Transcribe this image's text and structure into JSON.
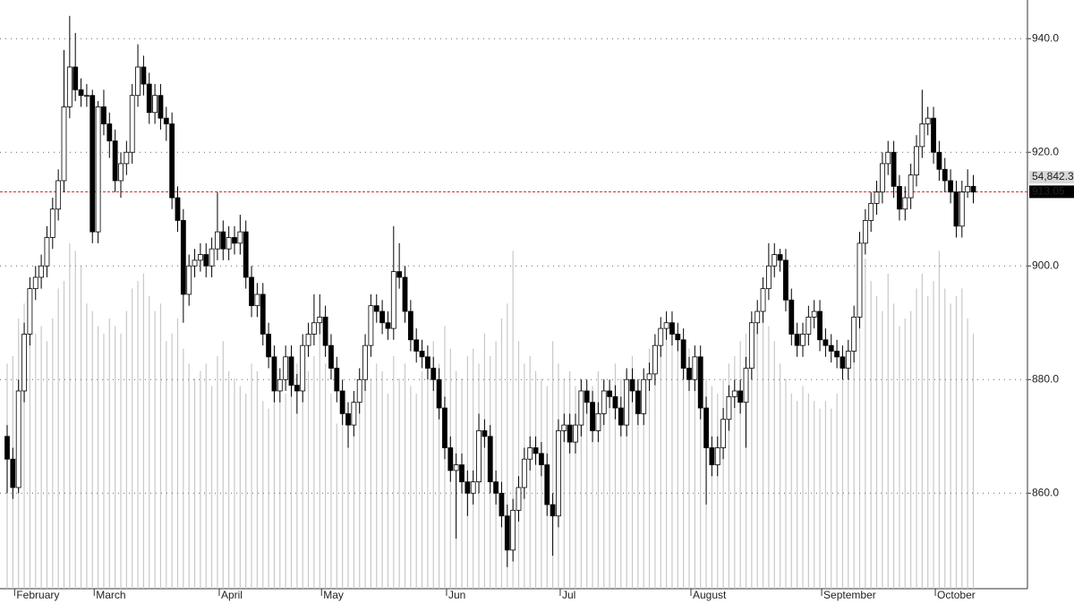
{
  "chart_data": {
    "type": "candlestick",
    "categories": [
      null,
      "February",
      null,
      null,
      null,
      null,
      null,
      null,
      null,
      null,
      null,
      null,
      null,
      null,
      null,
      "March",
      null,
      null,
      null,
      null,
      null,
      null,
      null,
      null,
      null,
      null,
      null,
      null,
      null,
      null,
      null,
      null,
      null,
      null,
      null,
      null,
      null,
      "April",
      null,
      null,
      null,
      null,
      null,
      null,
      null,
      null,
      null,
      null,
      null,
      null,
      null,
      null,
      null,
      null,
      null,
      "May",
      null,
      null,
      null,
      null,
      null,
      null,
      null,
      null,
      null,
      null,
      null,
      null,
      null,
      null,
      null,
      null,
      null,
      null,
      null,
      null,
      null,
      "Jun",
      null,
      null,
      null,
      null,
      null,
      null,
      null,
      null,
      null,
      null,
      null,
      null,
      null,
      null,
      null,
      null,
      null,
      null,
      null,
      "Jul",
      null,
      null,
      null,
      null,
      null,
      null,
      null,
      null,
      null,
      null,
      null,
      null,
      null,
      null,
      null,
      null,
      null,
      null,
      null,
      null,
      null,
      null,
      "August",
      null,
      null,
      null,
      null,
      null,
      null,
      null,
      null,
      null,
      null,
      null,
      null,
      null,
      null,
      null,
      null,
      null,
      null,
      null,
      null,
      null,
      null,
      "September",
      null,
      null,
      null,
      null,
      null,
      null,
      null,
      null,
      null,
      null,
      null,
      null,
      null,
      null,
      null,
      null,
      null,
      null,
      null,
      "October",
      null,
      null,
      null,
      null,
      null,
      null,
      null
    ],
    "open": [
      870,
      866,
      861,
      878,
      888,
      896,
      898,
      900,
      905,
      910,
      915,
      928,
      935,
      931,
      930,
      930,
      906,
      928,
      925,
      922,
      915,
      918,
      920,
      930,
      935,
      932,
      927,
      930,
      926,
      925,
      912,
      908,
      895,
      900,
      901,
      902,
      900,
      903,
      906,
      903,
      905,
      904,
      906,
      898,
      893,
      895,
      888,
      884,
      878,
      880,
      884,
      879,
      878,
      886,
      888,
      890,
      891,
      886,
      882,
      878,
      874,
      872,
      876,
      880,
      886,
      893,
      892,
      890,
      889,
      899,
      898,
      892,
      887,
      885,
      884,
      882,
      880,
      875,
      868,
      864,
      865,
      862,
      860,
      862,
      871,
      870,
      862,
      860,
      856,
      850,
      857,
      861,
      866,
      868,
      867,
      865,
      858,
      856,
      871,
      872,
      869,
      872,
      878,
      876,
      871,
      874,
      878,
      877,
      875,
      872,
      880,
      878,
      874,
      880,
      881,
      886,
      889,
      890,
      888,
      887,
      882,
      880,
      884,
      875,
      868,
      865,
      868,
      873,
      877,
      878,
      876,
      882,
      890,
      892,
      896,
      900,
      902,
      901,
      894,
      888,
      886,
      888,
      891,
      892,
      887,
      886,
      885,
      884,
      882,
      885,
      891,
      904,
      908,
      911,
      913,
      918,
      920,
      914,
      910,
      912,
      916,
      921,
      925,
      926,
      920,
      917,
      915,
      913,
      907,
      913,
      914
    ],
    "high": [
      872,
      868,
      880,
      890,
      898,
      900,
      902,
      907,
      912,
      917,
      938,
      944,
      941,
      933,
      932,
      931,
      929,
      931,
      927,
      924,
      920,
      922,
      932,
      939,
      937,
      934,
      932,
      932,
      928,
      927,
      914,
      910,
      902,
      903,
      904,
      904,
      905,
      913,
      908,
      907,
      907,
      909,
      908,
      900,
      897,
      897,
      890,
      886,
      882,
      886,
      886,
      881,
      888,
      890,
      895,
      895,
      893,
      888,
      884,
      880,
      876,
      878,
      882,
      888,
      895,
      895,
      894,
      892,
      907,
      904,
      900,
      894,
      889,
      887,
      886,
      884,
      882,
      877,
      870,
      867,
      867,
      864,
      864,
      874,
      873,
      872,
      864,
      862,
      858,
      859,
      863,
      868,
      870,
      870,
      869,
      867,
      860,
      873,
      874,
      874,
      874,
      880,
      880,
      878,
      876,
      880,
      880,
      879,
      877,
      882,
      882,
      880,
      882,
      883,
      888,
      891,
      892,
      892,
      890,
      889,
      884,
      886,
      886,
      877,
      870,
      870,
      875,
      879,
      880,
      880,
      884,
      892,
      894,
      898,
      904,
      904,
      903,
      903,
      896,
      890,
      890,
      893,
      894,
      894,
      889,
      888,
      887,
      886,
      887,
      893,
      906,
      910,
      913,
      915,
      920,
      922,
      922,
      916,
      914,
      918,
      923,
      931,
      928,
      928,
      922,
      919,
      917,
      915,
      915,
      917,
      916
    ],
    "low": [
      860,
      859,
      860,
      876,
      886,
      894,
      896,
      898,
      903,
      908,
      913,
      926,
      929,
      928,
      928,
      904,
      904,
      923,
      919,
      913,
      912,
      916,
      918,
      928,
      930,
      925,
      925,
      924,
      922,
      910,
      906,
      890,
      893,
      898,
      899,
      898,
      898,
      901,
      901,
      901,
      902,
      902,
      896,
      891,
      891,
      886,
      882,
      876,
      876,
      878,
      877,
      874,
      876,
      884,
      886,
      888,
      884,
      880,
      876,
      872,
      868,
      870,
      874,
      878,
      884,
      890,
      888,
      887,
      887,
      896,
      890,
      885,
      883,
      882,
      880,
      878,
      873,
      866,
      862,
      852,
      860,
      856,
      858,
      860,
      868,
      860,
      858,
      854,
      847,
      848,
      855,
      859,
      864,
      865,
      863,
      856,
      849,
      854,
      869,
      867,
      867,
      870,
      874,
      869,
      869,
      872,
      875,
      873,
      870,
      870,
      876,
      872,
      872,
      878,
      879,
      884,
      887,
      886,
      885,
      880,
      878,
      878,
      873,
      858,
      863,
      863,
      866,
      871,
      875,
      874,
      868,
      880,
      888,
      890,
      894,
      898,
      899,
      892,
      886,
      884,
      884,
      886,
      889,
      885,
      884,
      883,
      882,
      880,
      880,
      883,
      889,
      902,
      906,
      909,
      911,
      916,
      912,
      908,
      908,
      910,
      914,
      919,
      923,
      918,
      915,
      913,
      911,
      905,
      905,
      912,
      911
    ],
    "close": [
      866,
      861,
      878,
      888,
      896,
      898,
      900,
      905,
      910,
      915,
      928,
      935,
      931,
      930,
      930,
      906,
      928,
      925,
      922,
      915,
      918,
      920,
      930,
      935,
      932,
      927,
      930,
      926,
      925,
      912,
      908,
      895,
      900,
      901,
      902,
      900,
      903,
      906,
      903,
      905,
      904,
      906,
      898,
      893,
      895,
      888,
      884,
      878,
      880,
      884,
      879,
      878,
      886,
      888,
      890,
      891,
      886,
      882,
      878,
      874,
      872,
      876,
      880,
      886,
      893,
      892,
      890,
      889,
      899,
      898,
      892,
      887,
      885,
      884,
      882,
      880,
      875,
      868,
      864,
      865,
      862,
      860,
      862,
      871,
      870,
      862,
      860,
      856,
      850,
      857,
      861,
      866,
      868,
      867,
      865,
      858,
      856,
      871,
      872,
      869,
      872,
      878,
      876,
      871,
      874,
      878,
      877,
      875,
      872,
      880,
      878,
      874,
      880,
      881,
      886,
      889,
      890,
      888,
      887,
      882,
      880,
      884,
      875,
      868,
      865,
      868,
      873,
      877,
      878,
      876,
      882,
      890,
      892,
      896,
      900,
      902,
      901,
      894,
      888,
      886,
      888,
      891,
      892,
      887,
      886,
      885,
      884,
      882,
      885,
      891,
      904,
      908,
      911,
      913,
      918,
      920,
      914,
      910,
      912,
      916,
      921,
      925,
      926,
      920,
      917,
      915,
      913,
      907,
      913,
      914,
      913
    ],
    "volume": [
      30000,
      31000,
      36000,
      38000,
      33000,
      34000,
      35000,
      33000,
      36000,
      40000,
      41000,
      46000,
      45000,
      43000,
      38000,
      37000,
      35000,
      34000,
      36000,
      35000,
      34000,
      37000,
      40000,
      41000,
      42000,
      39000,
      37000,
      38000,
      33000,
      34000,
      36000,
      32000,
      30000,
      28000,
      29000,
      30000,
      27000,
      31000,
      33000,
      29000,
      28000,
      27000,
      26000,
      30000,
      29000,
      25000,
      24000,
      27000,
      25000,
      26000,
      28000,
      30000,
      27000,
      29000,
      31000,
      34000,
      30000,
      26000,
      22000,
      24000,
      23000,
      25000,
      26000,
      27000,
      28000,
      30000,
      29000,
      26000,
      31000,
      28000,
      30000,
      27000,
      26000,
      29000,
      31000,
      33000,
      30000,
      35000,
      32000,
      29000,
      28000,
      31000,
      32000,
      30000,
      34000,
      31000,
      33000,
      36000,
      38000,
      45000,
      33000,
      30000,
      31000,
      29000,
      28000,
      27000,
      33000,
      30000,
      28000,
      29000,
      27000,
      28000,
      26000,
      27000,
      29000,
      28000,
      27000,
      30000,
      28000,
      29000,
      31000,
      28000,
      29000,
      32000,
      33000,
      34000,
      35000,
      36000,
      33000,
      31000,
      32000,
      30000,
      29000,
      28000,
      27000,
      26000,
      28000,
      30000,
      31000,
      33000,
      34000,
      36000,
      37000,
      38000,
      35000,
      33000,
      30000,
      28000,
      26000,
      25000,
      27000,
      26000,
      25000,
      24000,
      25000,
      24000,
      26000,
      28000,
      32000,
      36000,
      40000,
      44000,
      41000,
      39000,
      37000,
      42000,
      38000,
      35000,
      36000,
      37000,
      40000,
      42000,
      39000,
      41000,
      45000,
      40000,
      38000,
      39000,
      40000,
      36000,
      34000
    ],
    "ylim": [
      843.2,
      946.8
    ],
    "yticks": [
      {
        "value": 860,
        "label": "860.0"
      },
      {
        "value": 880,
        "label": "880.0"
      },
      {
        "value": 900,
        "label": "900.0"
      },
      {
        "value": 920,
        "label": "920.0"
      },
      {
        "value": 940,
        "label": "940.0"
      }
    ],
    "vlim": [
      0,
      78450
    ],
    "vticks": [
      {
        "value": 54842.3,
        "label": "54,842.3"
      }
    ],
    "last_price": {
      "value": 913.05,
      "label": "913.05"
    },
    "grid": true,
    "up_color": "#ffffff",
    "down_color": "#000000",
    "volume_color": "#c8c8c8",
    "last_price_color": "#d62020"
  }
}
